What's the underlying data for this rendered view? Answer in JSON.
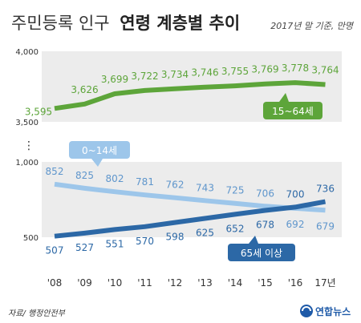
{
  "title_light": "주민등록 인구",
  "title_bold": "연령 계층별 추이",
  "note": "2017년 말 기준, 만명",
  "source": "자료/ 행정안전부",
  "logo_text": "연합뉴스",
  "colors": {
    "working": "#5da53a",
    "young": "#9dc6ea",
    "young_label": "#5f96cc",
    "elderly": "#2c68a6",
    "band": "#ececec",
    "axis_text": "#333333"
  },
  "chart_data": {
    "type": "line",
    "x": [
      "'08",
      "'09",
      "'10",
      "'11",
      "'12",
      "'13",
      "'14",
      "'15",
      "'16",
      "17년"
    ],
    "upper_axis": {
      "ylim": [
        3500,
        4000
      ],
      "ticks": [
        "4,000",
        "3,500"
      ]
    },
    "lower_axis": {
      "ylim": [
        500,
        1000
      ],
      "ticks": [
        "1,000",
        "500"
      ]
    },
    "axis_break": "⋮",
    "series": [
      {
        "name": "15~64세",
        "panel": "upper",
        "values": [
          3595,
          3626,
          3699,
          3722,
          3734,
          3746,
          3755,
          3769,
          3778,
          3764
        ],
        "labels": [
          "3,595",
          "3,626",
          "3,699",
          "3,722",
          "3,734",
          "3,746",
          "3,755",
          "3,769",
          "3,778",
          "3,764"
        ]
      },
      {
        "name": "0~14세",
        "panel": "lower",
        "values": [
          852,
          825,
          802,
          781,
          762,
          743,
          725,
          706,
          692,
          679
        ],
        "labels": [
          "852",
          "825",
          "802",
          "781",
          "762",
          "743",
          "725",
          "706",
          "692",
          "679"
        ]
      },
      {
        "name": "65세 이상",
        "panel": "lower",
        "values": [
          507,
          527,
          551,
          570,
          598,
          625,
          652,
          678,
          700,
          736
        ],
        "labels": [
          "507",
          "527",
          "551",
          "570",
          "598",
          "625",
          "652",
          "678",
          "700",
          "736"
        ]
      }
    ]
  }
}
